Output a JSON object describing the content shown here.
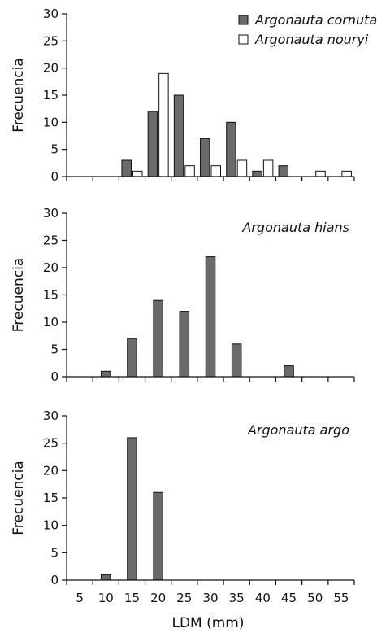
{
  "colors": {
    "filled_series": "#6a6a6a",
    "open_series": "#ffffff",
    "outline": "#111111"
  },
  "chart_data": [
    {
      "type": "bar",
      "ylabel": "Frecuencia",
      "xlabel": "",
      "ylim": [
        0,
        30
      ],
      "yticks": [
        "0",
        "5",
        "10",
        "15",
        "20",
        "25",
        "30"
      ],
      "x": [
        5,
        10,
        15,
        20,
        25,
        30,
        35,
        40,
        45,
        50,
        55
      ],
      "legend_position": "top-right",
      "grid": false,
      "series": [
        {
          "name": "Argonauta cornuta",
          "style": "filled",
          "values": [
            0,
            0,
            3,
            12,
            15,
            7,
            10,
            1,
            2,
            0,
            0
          ]
        },
        {
          "name": "Argonauta nouryi",
          "style": "open",
          "values": [
            0,
            0,
            1,
            19,
            2,
            2,
            3,
            3,
            0,
            1,
            1
          ]
        }
      ]
    },
    {
      "type": "bar",
      "panel_label": "Argonauta hians",
      "ylabel": "Frecuencia",
      "xlabel": "",
      "ylim": [
        0,
        30
      ],
      "yticks": [
        "0",
        "5",
        "10",
        "15",
        "20",
        "25",
        "30"
      ],
      "x": [
        5,
        10,
        15,
        20,
        25,
        30,
        35,
        40,
        45,
        50,
        55
      ],
      "grid": false,
      "series": [
        {
          "style": "filled",
          "values": [
            0,
            1,
            7,
            14,
            12,
            22,
            6,
            0,
            2,
            0,
            0
          ]
        }
      ]
    },
    {
      "type": "bar",
      "panel_label": "Argonauta argo",
      "ylabel": "Frecuencia",
      "xlabel": "LDM (mm)",
      "ylim": [
        0,
        30
      ],
      "yticks": [
        "0",
        "5",
        "10",
        "15",
        "20",
        "25",
        "30"
      ],
      "xticks": [
        "5",
        "10",
        "15",
        "20",
        "25",
        "30",
        "35",
        "40",
        "45",
        "50",
        "55"
      ],
      "x": [
        5,
        10,
        15,
        20,
        25,
        30,
        35,
        40,
        45,
        50,
        55
      ],
      "grid": false,
      "series": [
        {
          "style": "filled",
          "values": [
            0,
            1,
            26,
            16,
            0,
            0,
            0,
            0,
            0,
            0,
            0
          ]
        }
      ]
    }
  ]
}
